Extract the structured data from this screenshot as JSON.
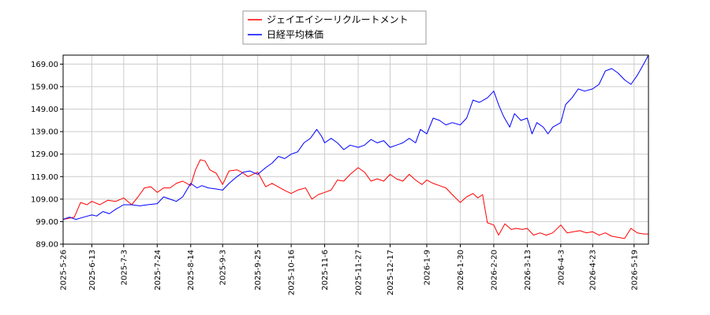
{
  "chart_data": {
    "type": "line",
    "title": "",
    "xlabel": "",
    "ylabel": "",
    "ylim": [
      89.0,
      173.0
    ],
    "yticks": [
      "89.00",
      "99.00",
      "109.00",
      "119.00",
      "129.00",
      "139.00",
      "149.00",
      "159.00",
      "169.00"
    ],
    "x_start": "2025-5-26",
    "x_end": "2026-5-28",
    "xticks": [
      "2025-5-26",
      "2025-6-13",
      "2025-7-3",
      "2025-7-24",
      "2025-8-14",
      "2025-9-3",
      "2025-9-25",
      "2025-10-16",
      "2025-11-6",
      "2025-11-27",
      "2025-12-17",
      "2026-1-9",
      "2026-1-30",
      "2026-2-20",
      "2026-3-13",
      "2026-4-3",
      "2026-4-23",
      "2026-5-19"
    ],
    "grid": true,
    "legend_position": "top-center",
    "series": [
      {
        "name": "ジェイエイシーリクルートメント",
        "color": "#ff0000",
        "points": [
          [
            "2025-5-26",
            100
          ],
          [
            "2025-6-2",
            101
          ],
          [
            "2025-6-6",
            107.5
          ],
          [
            "2025-6-10",
            106.5
          ],
          [
            "2025-6-13",
            108
          ],
          [
            "2025-6-18",
            106.5
          ],
          [
            "2025-6-23",
            108.5
          ],
          [
            "2025-6-28",
            108
          ],
          [
            "2025-7-3",
            109.5
          ],
          [
            "2025-7-8",
            106.5
          ],
          [
            "2025-7-12",
            110
          ],
          [
            "2025-7-16",
            114
          ],
          [
            "2025-7-20",
            114.5
          ],
          [
            "2025-7-24",
            112
          ],
          [
            "2025-7-28",
            114
          ],
          [
            "2025-8-1",
            114
          ],
          [
            "2025-8-5",
            116
          ],
          [
            "2025-8-9",
            117
          ],
          [
            "2025-8-14",
            115
          ],
          [
            "2025-8-17",
            122
          ],
          [
            "2025-8-20",
            126.5
          ],
          [
            "2025-8-23",
            126
          ],
          [
            "2025-8-26",
            122
          ],
          [
            "2025-8-30",
            120.5
          ],
          [
            "2025-9-3",
            115.5
          ],
          [
            "2025-9-7",
            121.5
          ],
          [
            "2025-9-12",
            122
          ],
          [
            "2025-9-15",
            121
          ],
          [
            "2025-9-19",
            119
          ],
          [
            "2025-9-25",
            121
          ],
          [
            "2025-9-30",
            114.5
          ],
          [
            "2025-10-4",
            116
          ],
          [
            "2025-10-9",
            114
          ],
          [
            "2025-10-13",
            112.5
          ],
          [
            "2025-10-16",
            111.5
          ],
          [
            "2025-10-20",
            113
          ],
          [
            "2025-10-25",
            114
          ],
          [
            "2025-10-29",
            109
          ],
          [
            "2025-11-2",
            111
          ],
          [
            "2025-11-6",
            112
          ],
          [
            "2025-11-10",
            113
          ],
          [
            "2025-11-14",
            117.5
          ],
          [
            "2025-11-18",
            117
          ],
          [
            "2025-11-22",
            120
          ],
          [
            "2025-11-27",
            123
          ],
          [
            "2025-12-1",
            121
          ],
          [
            "2025-12-5",
            117
          ],
          [
            "2025-12-9",
            118
          ],
          [
            "2025-12-13",
            117
          ],
          [
            "2025-12-17",
            120
          ],
          [
            "2025-12-21",
            118
          ],
          [
            "2025-12-25",
            117
          ],
          [
            "2025-12-29",
            120
          ],
          [
            "2026-1-2",
            117.5
          ],
          [
            "2026-1-6",
            115.5
          ],
          [
            "2026-1-9",
            117.5
          ],
          [
            "2026-1-13",
            116
          ],
          [
            "2026-1-17",
            115
          ],
          [
            "2026-1-21",
            114
          ],
          [
            "2026-1-25",
            111
          ],
          [
            "2026-1-30",
            107.5
          ],
          [
            "2026-2-3",
            110
          ],
          [
            "2026-2-7",
            111.5
          ],
          [
            "2026-2-10",
            109.5
          ],
          [
            "2026-2-13",
            111
          ],
          [
            "2026-2-16",
            98.5
          ],
          [
            "2026-2-20",
            97.5
          ],
          [
            "2026-2-23",
            93
          ],
          [
            "2026-2-27",
            98
          ],
          [
            "2026-3-3",
            95.5
          ],
          [
            "2026-3-6",
            96
          ],
          [
            "2026-3-10",
            95.5
          ],
          [
            "2026-3-13",
            96
          ],
          [
            "2026-3-17",
            93
          ],
          [
            "2026-3-21",
            94
          ],
          [
            "2026-3-25",
            93
          ],
          [
            "2026-3-29",
            94
          ],
          [
            "2026-4-3",
            97.5
          ],
          [
            "2026-4-7",
            94
          ],
          [
            "2026-4-11",
            94.5
          ],
          [
            "2026-4-15",
            95
          ],
          [
            "2026-4-19",
            94
          ],
          [
            "2026-4-23",
            94.5
          ],
          [
            "2026-4-27",
            93
          ],
          [
            "2026-5-1",
            94
          ],
          [
            "2026-5-5",
            92.5
          ],
          [
            "2026-5-9",
            92
          ],
          [
            "2026-5-13",
            91.5
          ],
          [
            "2026-5-17",
            96
          ],
          [
            "2026-5-21",
            94
          ],
          [
            "2026-5-25",
            93.5
          ],
          [
            "2026-5-28",
            93.5
          ]
        ]
      },
      {
        "name": "日経平均株価",
        "color": "#0000ff",
        "points": [
          [
            "2025-5-26",
            100
          ],
          [
            "2025-5-30",
            101
          ],
          [
            "2025-6-3",
            100
          ],
          [
            "2025-6-8",
            101
          ],
          [
            "2025-6-13",
            102
          ],
          [
            "2025-6-16",
            101.5
          ],
          [
            "2025-6-20",
            103.5
          ],
          [
            "2025-6-24",
            102.5
          ],
          [
            "2025-6-28",
            104.5
          ],
          [
            "2025-7-3",
            106.5
          ],
          [
            "2025-7-8",
            106.5
          ],
          [
            "2025-7-13",
            106
          ],
          [
            "2025-7-18",
            106.5
          ],
          [
            "2025-7-24",
            107
          ],
          [
            "2025-7-28",
            110
          ],
          [
            "2025-8-1",
            109
          ],
          [
            "2025-8-5",
            108
          ],
          [
            "2025-8-9",
            110
          ],
          [
            "2025-8-14",
            116
          ],
          [
            "2025-8-18",
            114
          ],
          [
            "2025-8-21",
            115
          ],
          [
            "2025-8-25",
            114
          ],
          [
            "2025-8-30",
            113.5
          ],
          [
            "2025-9-3",
            113
          ],
          [
            "2025-9-7",
            116
          ],
          [
            "2025-9-12",
            119
          ],
          [
            "2025-9-16",
            121
          ],
          [
            "2025-9-20",
            121.5
          ],
          [
            "2025-9-25",
            120
          ],
          [
            "2025-9-30",
            123
          ],
          [
            "2025-10-4",
            125
          ],
          [
            "2025-10-8",
            128
          ],
          [
            "2025-10-12",
            127
          ],
          [
            "2025-10-16",
            129
          ],
          [
            "2025-10-20",
            130
          ],
          [
            "2025-10-24",
            134
          ],
          [
            "2025-10-28",
            136
          ],
          [
            "2025-11-1",
            140
          ],
          [
            "2025-11-4",
            137
          ],
          [
            "2025-11-6",
            134
          ],
          [
            "2025-11-10",
            136
          ],
          [
            "2025-11-14",
            134
          ],
          [
            "2025-11-18",
            131
          ],
          [
            "2025-11-22",
            133
          ],
          [
            "2025-11-27",
            132
          ],
          [
            "2025-12-1",
            133
          ],
          [
            "2025-12-5",
            135.5
          ],
          [
            "2025-12-9",
            134
          ],
          [
            "2025-12-13",
            135
          ],
          [
            "2025-12-17",
            132
          ],
          [
            "2025-12-21",
            133
          ],
          [
            "2025-12-25",
            134
          ],
          [
            "2025-12-29",
            136
          ],
          [
            "2026-1-2",
            134
          ],
          [
            "2026-1-5",
            140
          ],
          [
            "2026-1-9",
            138
          ],
          [
            "2026-1-13",
            145
          ],
          [
            "2026-1-17",
            144
          ],
          [
            "2026-1-21",
            142
          ],
          [
            "2026-1-25",
            143
          ],
          [
            "2026-1-30",
            142
          ],
          [
            "2026-2-3",
            145
          ],
          [
            "2026-2-7",
            153
          ],
          [
            "2026-2-11",
            152
          ],
          [
            "2026-2-16",
            154
          ],
          [
            "2026-2-20",
            157
          ],
          [
            "2026-2-23",
            151
          ],
          [
            "2026-2-26",
            146
          ],
          [
            "2026-3-2",
            141
          ],
          [
            "2026-3-5",
            147
          ],
          [
            "2026-3-9",
            144
          ],
          [
            "2026-3-13",
            145
          ],
          [
            "2026-3-16",
            138
          ],
          [
            "2026-3-19",
            143
          ],
          [
            "2026-3-23",
            141
          ],
          [
            "2026-3-26",
            138
          ],
          [
            "2026-3-29",
            141
          ],
          [
            "2026-4-3",
            143
          ],
          [
            "2026-4-6",
            151
          ],
          [
            "2026-4-10",
            154
          ],
          [
            "2026-4-14",
            158
          ],
          [
            "2026-4-18",
            157
          ],
          [
            "2026-4-23",
            158
          ],
          [
            "2026-4-27",
            160
          ],
          [
            "2026-5-1",
            166
          ],
          [
            "2026-5-5",
            167
          ],
          [
            "2026-5-9",
            165
          ],
          [
            "2026-5-13",
            162
          ],
          [
            "2026-5-17",
            160
          ],
          [
            "2026-5-21",
            164
          ],
          [
            "2026-5-25",
            169
          ],
          [
            "2026-5-28",
            173
          ]
        ]
      }
    ]
  }
}
